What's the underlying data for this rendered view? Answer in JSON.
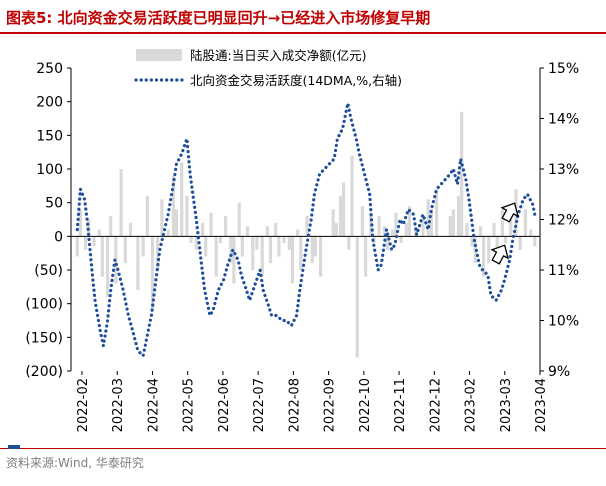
{
  "title": "图表5:  北向资金交易活跃度已明显回升→已经进入市场修复早期",
  "source": "资料来源:Wind, 华泰研究",
  "colors": {
    "title": "#c00000",
    "rule": "#c00000",
    "bars": "#d9d9d9",
    "line": "#1f4e9c",
    "axis": "#000000",
    "footer_mark": "#1f4e9c"
  },
  "icons": [
    "arrow-up-icon",
    "arrow-up-icon"
  ],
  "chart_data": {
    "type": "bar",
    "left_axis": {
      "ylim": [
        -200,
        250
      ],
      "ticks": [
        250,
        200,
        150,
        100,
        50,
        0,
        -50,
        -100,
        -150,
        -200
      ],
      "tick_labels": [
        "250",
        "200",
        "150",
        "100",
        "50",
        "0",
        "(50)",
        "(100)",
        "(150)",
        "(200)"
      ]
    },
    "right_axis": {
      "ylim": [
        9,
        15
      ],
      "ticks": [
        15,
        14,
        13,
        12,
        11,
        10,
        9
      ],
      "tick_labels": [
        "15%",
        "14%",
        "13%",
        "12%",
        "11%",
        "10%",
        "9%"
      ]
    },
    "x_categories": [
      "2022-02",
      "2022-03",
      "2022-04",
      "2022-05",
      "2022-06",
      "2022-07",
      "2022-08",
      "2022-09",
      "2022-10",
      "2022-11",
      "2022-12",
      "2023-02",
      "2023-03",
      "2023-04"
    ],
    "legend": {
      "position": "top-center",
      "entries": [
        "陆股通:当日买入成交净额(亿元)",
        "北向资金交易活跃度(14DMA,%,右轴)"
      ]
    },
    "annotations": [
      "arrow-up",
      "arrow-up"
    ],
    "series": [
      {
        "name": "陆股通:当日买入成交净额(亿元)",
        "type": "bar",
        "axis": "left",
        "x": [
          "2022-02-07",
          "2022-02-10",
          "2022-02-15",
          "2022-02-18",
          "2022-02-23",
          "2022-02-28",
          "2022-03-03",
          "2022-03-08",
          "2022-03-11",
          "2022-03-16",
          "2022-03-21",
          "2022-03-25",
          "2022-03-30",
          "2022-04-06",
          "2022-04-11",
          "2022-04-15",
          "2022-04-20",
          "2022-04-25",
          "2022-04-29",
          "2022-05-05",
          "2022-05-10",
          "2022-05-13",
          "2022-05-18",
          "2022-05-23",
          "2022-05-27",
          "2022-06-01",
          "2022-06-07",
          "2022-06-10",
          "2022-06-15",
          "2022-06-20",
          "2022-06-24",
          "2022-06-29",
          "2022-07-04",
          "2022-07-07",
          "2022-07-12",
          "2022-07-15",
          "2022-07-20",
          "2022-07-25",
          "2022-07-29",
          "2022-08-03",
          "2022-08-08",
          "2022-08-11",
          "2022-08-16",
          "2022-08-19",
          "2022-08-24",
          "2022-08-29",
          "2022-09-01",
          "2022-09-06",
          "2022-09-09",
          "2022-09-15",
          "2022-09-20",
          "2022-09-23",
          "2022-09-28",
          "2022-10-10",
          "2022-10-13",
          "2022-10-17",
          "2022-10-20",
          "2022-10-25",
          "2022-10-28",
          "2022-11-02",
          "2022-11-07",
          "2022-11-10",
          "2022-11-15",
          "2022-11-18",
          "2022-11-23",
          "2022-11-28",
          "2022-12-01",
          "2022-12-06",
          "2022-12-09",
          "2022-12-14",
          "2022-12-19",
          "2022-12-22",
          "2022-12-28",
          "2023-01-04",
          "2023-01-09",
          "2023-01-12",
          "2023-01-17",
          "2023-01-30",
          "2023-02-02",
          "2023-02-07",
          "2023-02-10",
          "2023-02-15",
          "2023-02-20",
          "2023-02-23",
          "2023-02-28",
          "2023-03-03",
          "2023-03-08",
          "2023-03-13",
          "2023-03-16",
          "2023-03-21",
          "2023-03-24",
          "2023-03-29",
          "2023-04-03",
          "2023-04-07",
          "2023-04-12",
          "2023-04-17",
          "2023-04-21"
        ],
        "values": [
          -30,
          40,
          -20,
          25,
          -15,
          10,
          -60,
          -90,
          30,
          -70,
          100,
          -40,
          20,
          -80,
          -30,
          60,
          -110,
          -50,
          55,
          10,
          90,
          40,
          110,
          60,
          -10,
          -20,
          20,
          -30,
          35,
          -60,
          -10,
          30,
          -40,
          -70,
          50,
          -30,
          15,
          -50,
          -20,
          -60,
          15,
          -40,
          20,
          -30,
          -10,
          -20,
          -70,
          10,
          -50,
          30,
          -40,
          -30,
          -60,
          40,
          20,
          60,
          80,
          -20,
          120,
          -180,
          45,
          -60,
          35,
          -10,
          30,
          15,
          -20,
          10,
          35,
          -10,
          20,
          45,
          10,
          25,
          55,
          40,
          70,
          30,
          40,
          60,
          185,
          20,
          -15,
          -40,
          15,
          -60,
          -40,
          20,
          -20,
          40,
          -10,
          25,
          70,
          -20,
          40,
          10,
          -15
        ]
      },
      {
        "name": "北向资金交易活跃度(14DMA,%,右轴)",
        "type": "line",
        "axis": "right",
        "x": [
          "2022-02-07",
          "2022-02-10",
          "2022-02-14",
          "2022-02-17",
          "2022-02-21",
          "2022-02-24",
          "2022-03-01",
          "2022-03-04",
          "2022-03-08",
          "2022-03-11",
          "2022-03-15",
          "2022-03-18",
          "2022-03-23",
          "2022-03-28",
          "2022-04-01",
          "2022-04-06",
          "2022-04-11",
          "2022-04-14",
          "2022-04-19",
          "2022-04-22",
          "2022-04-27",
          "2022-05-05",
          "2022-05-10",
          "2022-05-13",
          "2022-05-18",
          "2022-05-23",
          "2022-05-26",
          "2022-06-01",
          "2022-06-06",
          "2022-06-09",
          "2022-06-14",
          "2022-06-17",
          "2022-06-22",
          "2022-06-27",
          "2022-07-01",
          "2022-07-06",
          "2022-07-11",
          "2022-07-14",
          "2022-07-19",
          "2022-07-22",
          "2022-07-27",
          "2022-08-01",
          "2022-08-04",
          "2022-08-09",
          "2022-08-12",
          "2022-08-17",
          "2022-08-22",
          "2022-08-26",
          "2022-08-31",
          "2022-09-05",
          "2022-09-08",
          "2022-09-14",
          "2022-09-19",
          "2022-09-22",
          "2022-09-27",
          "2022-10-11",
          "2022-10-14",
          "2022-10-19",
          "2022-10-24",
          "2022-10-27",
          "2022-11-01",
          "2022-11-04",
          "2022-11-09",
          "2022-11-14",
          "2022-11-17",
          "2022-11-22",
          "2022-11-25",
          "2022-11-30",
          "2022-12-05",
          "2022-12-08",
          "2022-12-13",
          "2022-12-16",
          "2022-12-21",
          "2022-12-26",
          "2022-12-29",
          "2023-01-04",
          "2023-01-09",
          "2023-01-12",
          "2023-01-17",
          "2023-01-30",
          "2023-02-02",
          "2023-02-06",
          "2023-02-09",
          "2023-02-14",
          "2023-02-17",
          "2023-02-22",
          "2023-02-27",
          "2023-03-02",
          "2023-03-07",
          "2023-03-10",
          "2023-03-15",
          "2023-03-20",
          "2023-03-23",
          "2023-03-28",
          "2023-03-31",
          "2023-04-05",
          "2023-04-10",
          "2023-04-14",
          "2023-04-19",
          "2023-04-21"
        ],
        "values": [
          11.8,
          12.6,
          12.4,
          11.9,
          11.0,
          10.4,
          9.8,
          9.5,
          10.0,
          10.6,
          11.2,
          11.0,
          10.6,
          10.1,
          9.8,
          9.4,
          9.3,
          9.6,
          10.1,
          10.6,
          11.4,
          12.1,
          12.7,
          13.1,
          13.3,
          13.6,
          12.9,
          12.0,
          11.1,
          10.6,
          10.1,
          10.2,
          10.6,
          10.8,
          11.1,
          11.4,
          11.2,
          10.9,
          10.6,
          10.4,
          10.7,
          11.0,
          10.6,
          10.3,
          10.1,
          10.1,
          10.0,
          10.0,
          9.9,
          10.1,
          10.6,
          11.4,
          12.0,
          12.5,
          12.9,
          13.2,
          13.6,
          13.8,
          14.3,
          14.0,
          13.6,
          13.3,
          12.9,
          12.5,
          11.6,
          11.0,
          11.1,
          11.8,
          11.4,
          11.5,
          12.0,
          11.9,
          12.2,
          12.1,
          11.7,
          12.1,
          11.8,
          12.2,
          12.6,
          12.9,
          13.0,
          12.7,
          13.2,
          12.8,
          12.4,
          11.6,
          11.1,
          11.0,
          10.9,
          10.5,
          10.4,
          10.6,
          10.8,
          11.2,
          11.6,
          12.1,
          12.4,
          12.5,
          12.3,
          12.1
        ]
      }
    ]
  }
}
